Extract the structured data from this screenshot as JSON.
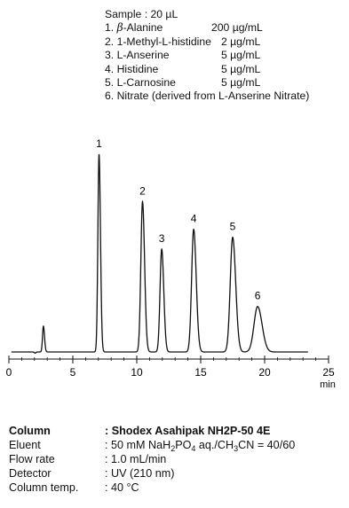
{
  "sample": {
    "header": "Sample : 20 µL",
    "items": [
      {
        "num": "1.",
        "beta": "β",
        "name": "-Alanine",
        "amount": "200 µg/mL"
      },
      {
        "num": "2.",
        "beta": "",
        "name": "1-Methyl-L-histidine",
        "amount": "2 µg/mL"
      },
      {
        "num": "3.",
        "beta": "",
        "name": "L-Anserine",
        "amount": "5 µg/mL"
      },
      {
        "num": "4.",
        "beta": "",
        "name": "Histidine",
        "amount": "5 µg/mL"
      },
      {
        "num": "5.",
        "beta": "",
        "name": "L-Carnosine",
        "amount": "5 µg/mL"
      },
      {
        "num": "6.",
        "beta": "",
        "name": "Nitrate (derived from L-Anserine Nitrate)",
        "amount": ""
      }
    ]
  },
  "chart_data": {
    "type": "line",
    "xlabel": "min",
    "xlim": [
      0,
      25
    ],
    "xticks": [
      0,
      5,
      10,
      15,
      20,
      25
    ],
    "y_axis": "none",
    "grid": false,
    "peaks": [
      {
        "label": "",
        "rt": 2.7,
        "height": 0.13,
        "sigma": 0.07
      },
      {
        "label": "1",
        "rt": 7.05,
        "height": 1.0,
        "sigma": 0.09
      },
      {
        "label": "2",
        "rt": 10.45,
        "height": 0.76,
        "sigma": 0.13
      },
      {
        "label": "3",
        "rt": 11.95,
        "height": 0.52,
        "sigma": 0.13
      },
      {
        "label": "4",
        "rt": 14.45,
        "height": 0.62,
        "sigma": 0.16
      },
      {
        "label": "5",
        "rt": 17.5,
        "height": 0.58,
        "sigma": 0.19
      },
      {
        "label": "6",
        "rt": 19.45,
        "height": 0.23,
        "sigma": 0.28
      }
    ]
  },
  "conditions": [
    {
      "key": "Column",
      "sep": ":",
      "value": "Shodex Asahipak NH2P-50 4E",
      "bold": true
    },
    {
      "key": "Eluent",
      "sep": ":",
      "value_pre": "50 mM NaH",
      "sub1": "2",
      "value_mid": "PO",
      "sub2": "4",
      "value_post": " aq./CH",
      "sub3": "3",
      "value_end": "CN = 40/60"
    },
    {
      "key": "Flow rate",
      "sep": ":",
      "value": "1.0 mL/min"
    },
    {
      "key": "Detector",
      "sep": ":",
      "value": "UV (210 nm)"
    },
    {
      "key": "Column temp.",
      "sep": ":",
      "value": "40 °C"
    }
  ]
}
